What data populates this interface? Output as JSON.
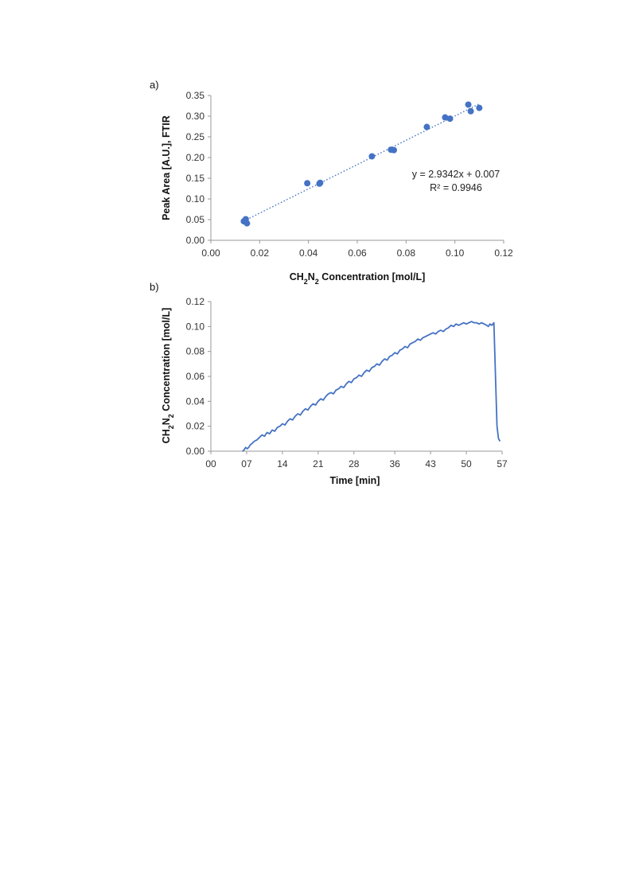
{
  "chart_data": [
    {
      "panel_label": "a)",
      "type": "scatter",
      "xlabel": "CH₂N₂ Concentration [mol/L]",
      "ylabel": "Peak Area [A.U.], FTIR",
      "xlim": [
        0,
        0.12
      ],
      "ylim": [
        0,
        0.35
      ],
      "x_ticks": [
        "0.00",
        "0.02",
        "0.04",
        "0.06",
        "0.08",
        "0.10",
        "0.12"
      ],
      "y_ticks": [
        "0.00",
        "0.05",
        "0.10",
        "0.15",
        "0.20",
        "0.25",
        "0.30",
        "0.35"
      ],
      "grid": false,
      "marker_color": "#4472C4",
      "points": [
        {
          "x": 0.0135,
          "y": 0.046
        },
        {
          "x": 0.014,
          "y": 0.048
        },
        {
          "x": 0.0143,
          "y": 0.051
        },
        {
          "x": 0.0148,
          "y": 0.041
        },
        {
          "x": 0.0395,
          "y": 0.138
        },
        {
          "x": 0.0445,
          "y": 0.137
        },
        {
          "x": 0.0448,
          "y": 0.139
        },
        {
          "x": 0.066,
          "y": 0.203
        },
        {
          "x": 0.0738,
          "y": 0.219
        },
        {
          "x": 0.075,
          "y": 0.218
        },
        {
          "x": 0.0885,
          "y": 0.274
        },
        {
          "x": 0.096,
          "y": 0.297
        },
        {
          "x": 0.098,
          "y": 0.294
        },
        {
          "x": 0.1055,
          "y": 0.328
        },
        {
          "x": 0.1065,
          "y": 0.312
        },
        {
          "x": 0.11,
          "y": 0.32
        }
      ],
      "trendline": {
        "slope": 2.9342,
        "intercept": 0.007,
        "x_range": [
          0.0135,
          0.11
        ],
        "style": "dotted",
        "equation_text": "y = 2.9342x + 0.007",
        "r2_text": "R² = 0.9946"
      }
    },
    {
      "panel_label": "b)",
      "type": "line",
      "xlabel": "Time [min]",
      "ylabel": "CH₂N₂ Concentration [mol/L]",
      "xlim": [
        0,
        57
      ],
      "ylim": [
        0,
        0.12
      ],
      "x_ticks": [
        {
          "value": 0,
          "label": "00"
        },
        {
          "value": 7,
          "label": "07"
        },
        {
          "value": 14,
          "label": "14"
        },
        {
          "value": 21,
          "label": "21"
        },
        {
          "value": 28,
          "label": "28"
        },
        {
          "value": 36,
          "label": "36"
        },
        {
          "value": 43,
          "label": "43"
        },
        {
          "value": 50,
          "label": "50"
        },
        {
          "value": 57,
          "label": "57"
        }
      ],
      "y_ticks": [
        "0.00",
        "0.02",
        "0.04",
        "0.06",
        "0.08",
        "0.10",
        "0.12"
      ],
      "grid": false,
      "line_color": "#4472C4",
      "series": [
        {
          "x": [
            6.2,
            6.5,
            6.8,
            7.1,
            7.4,
            7.7,
            8.0,
            8.5,
            9.0,
            9.5,
            10.0,
            10.5,
            11.0,
            11.5,
            12.0,
            12.5,
            13.0,
            13.5,
            14.0,
            14.5,
            15.0,
            15.5,
            16.0,
            16.5,
            17.0,
            17.5,
            18.0,
            18.5,
            19.0,
            19.5,
            20.0,
            20.5,
            21.0,
            21.5,
            22.0,
            22.5,
            23.0,
            23.5,
            24.0,
            24.5,
            25.0,
            25.5,
            26.0,
            26.5,
            27.0,
            27.5,
            28.0,
            28.5,
            29.0,
            29.5,
            30.0,
            30.5,
            31.0,
            31.5,
            32.0,
            32.5,
            33.0,
            33.5,
            34.0,
            34.5,
            35.0,
            35.5,
            36.0,
            36.5,
            37.0,
            37.5,
            38.0,
            38.5,
            39.0,
            39.5,
            40.0,
            40.5,
            41.0,
            41.5,
            42.0,
            42.5,
            43.0,
            43.5,
            44.0,
            44.5,
            45.0,
            45.5,
            46.0,
            46.5,
            47.0,
            47.5,
            48.0,
            48.5,
            49.0,
            49.5,
            50.0,
            50.5,
            51.0,
            51.5,
            52.0,
            52.5,
            53.0,
            53.5,
            54.0,
            54.3,
            54.6,
            55.0,
            55.4,
            55.7,
            56.0,
            56.3,
            56.6
          ],
          "y": [
            0.0,
            0.001,
            0.003,
            0.002,
            0.003,
            0.005,
            0.006,
            0.008,
            0.009,
            0.011,
            0.013,
            0.012,
            0.015,
            0.014,
            0.017,
            0.016,
            0.019,
            0.02,
            0.022,
            0.021,
            0.024,
            0.026,
            0.025,
            0.028,
            0.03,
            0.029,
            0.032,
            0.034,
            0.033,
            0.036,
            0.038,
            0.037,
            0.04,
            0.042,
            0.041,
            0.044,
            0.046,
            0.047,
            0.046,
            0.049,
            0.05,
            0.052,
            0.051,
            0.054,
            0.056,
            0.055,
            0.058,
            0.059,
            0.061,
            0.06,
            0.063,
            0.065,
            0.064,
            0.067,
            0.068,
            0.07,
            0.069,
            0.072,
            0.074,
            0.073,
            0.076,
            0.077,
            0.079,
            0.078,
            0.081,
            0.082,
            0.084,
            0.083,
            0.086,
            0.087,
            0.088,
            0.09,
            0.089,
            0.091,
            0.092,
            0.093,
            0.094,
            0.095,
            0.094,
            0.096,
            0.097,
            0.096,
            0.098,
            0.099,
            0.101,
            0.1,
            0.102,
            0.101,
            0.102,
            0.103,
            0.102,
            0.103,
            0.104,
            0.103,
            0.103,
            0.102,
            0.103,
            0.102,
            0.101,
            0.1,
            0.102,
            0.101,
            0.103,
            0.06,
            0.02,
            0.01,
            0.008
          ]
        }
      ]
    }
  ]
}
